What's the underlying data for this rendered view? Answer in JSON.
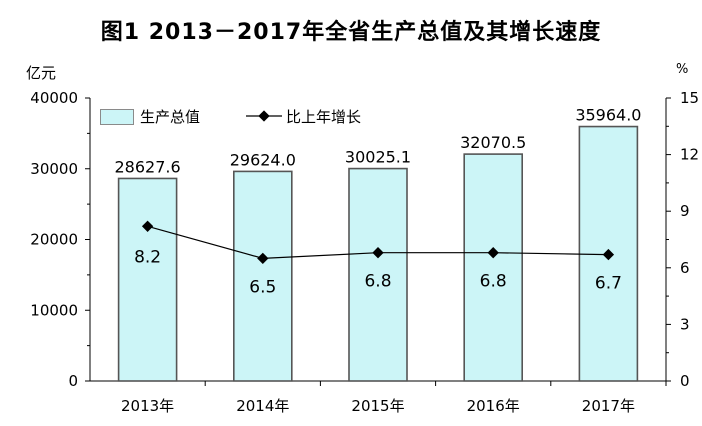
{
  "title": "图1  2013－2017年全省生产总值及其增长速度",
  "units": {
    "left": "亿元",
    "right": "%"
  },
  "colors": {
    "bar_fill": "#ccf5f7",
    "bar_stroke": "#555555",
    "line": "#000000",
    "grid": "#000000"
  },
  "chart_data": {
    "type": "bar",
    "categories": [
      "2013年",
      "2014年",
      "2015年",
      "2016年",
      "2017年"
    ],
    "series": [
      {
        "name": "生产总值",
        "type": "bar",
        "axis": "left",
        "values": [
          28627.6,
          29624.0,
          30025.1,
          32070.5,
          35964.0
        ],
        "labels": [
          "28627.6",
          "29624.0",
          "30025.1",
          "32070.5",
          "35964.0"
        ]
      },
      {
        "name": "比上年增长",
        "type": "line",
        "axis": "right",
        "values": [
          8.2,
          6.5,
          6.8,
          6.8,
          6.7
        ],
        "labels": [
          "8.2",
          "6.5",
          "6.8",
          "6.8",
          "6.7"
        ]
      }
    ],
    "y_left": {
      "ylim": [
        0,
        40000
      ],
      "ticks": [
        "0",
        "10000",
        "20000",
        "30000",
        "40000"
      ]
    },
    "y_right": {
      "ylim": [
        0,
        15
      ],
      "ticks": [
        "0",
        "3",
        "6",
        "9",
        "12",
        "15"
      ]
    },
    "legend": "top-left",
    "grid": false
  }
}
